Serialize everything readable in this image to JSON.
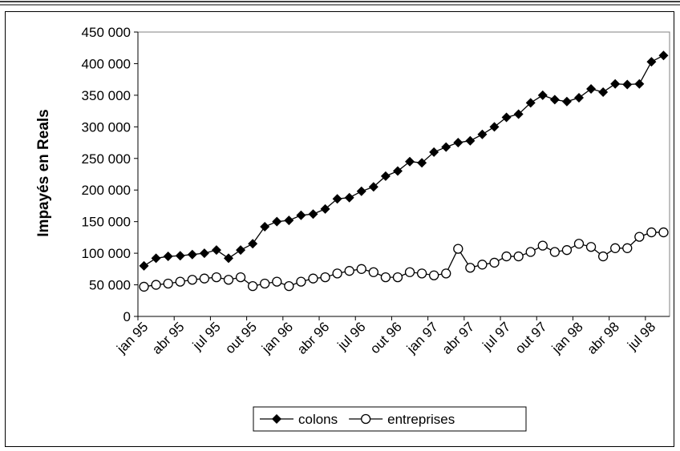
{
  "chart_data": {
    "type": "line",
    "y_label": "Impayés en Reals",
    "categories": [
      "jan 95",
      null,
      null,
      "abr 95",
      null,
      null,
      "jul 95",
      null,
      null,
      "out 95",
      null,
      null,
      "jan 96",
      null,
      null,
      "abr 96",
      null,
      null,
      "jul 96",
      null,
      null,
      "out 96",
      null,
      null,
      "jan 97",
      null,
      null,
      "abr 97",
      null,
      null,
      "jul 97",
      null,
      null,
      "out 97",
      null,
      null,
      "jan 98",
      null,
      null,
      "abr 98",
      null,
      null,
      "jul 98",
      null
    ],
    "series": [
      {
        "name": "colons",
        "color": "#000000",
        "marker": "diamond",
        "values": [
          80000,
          92000,
          95000,
          96000,
          98000,
          100000,
          105000,
          92000,
          105000,
          115000,
          142000,
          150000,
          152000,
          160000,
          162000,
          170000,
          186000,
          188000,
          198000,
          205000,
          222000,
          230000,
          245000,
          243000,
          260000,
          268000,
          275000,
          278000,
          288000,
          300000,
          315000,
          320000,
          338000,
          350000,
          343000,
          340000,
          346000,
          360000,
          355000,
          368000,
          367000,
          368000,
          403000,
          413000
        ]
      },
      {
        "name": "entreprises",
        "color": "#000000",
        "marker": "circle",
        "values": [
          47000,
          50000,
          52000,
          55000,
          58000,
          60000,
          62000,
          58000,
          62000,
          48000,
          52000,
          55000,
          48000,
          55000,
          60000,
          62000,
          68000,
          72000,
          75000,
          70000,
          62000,
          62000,
          70000,
          68000,
          65000,
          68000,
          107000,
          77000,
          82000,
          85000,
          95000,
          95000,
          102000,
          112000,
          102000,
          105000,
          115000,
          110000,
          95000,
          108000,
          108000,
          126000,
          133000,
          133000
        ]
      }
    ],
    "ylim": [
      0,
      450000
    ],
    "yticks": [
      0,
      {
        "value": 50000,
        "label": "50 000"
      },
      {
        "value": 100000,
        "label": "100 000"
      },
      {
        "value": 150000,
        "label": "150 000"
      },
      {
        "value": 200000,
        "label": "200 000"
      },
      {
        "value": 250000,
        "label": "250 000"
      },
      {
        "value": 300000,
        "label": "300 000"
      },
      {
        "value": 350000,
        "label": "350 000"
      },
      {
        "value": 400000,
        "label": "400 000"
      },
      {
        "value": 450000,
        "label": "450 000"
      }
    ],
    "legend": "bottom"
  }
}
